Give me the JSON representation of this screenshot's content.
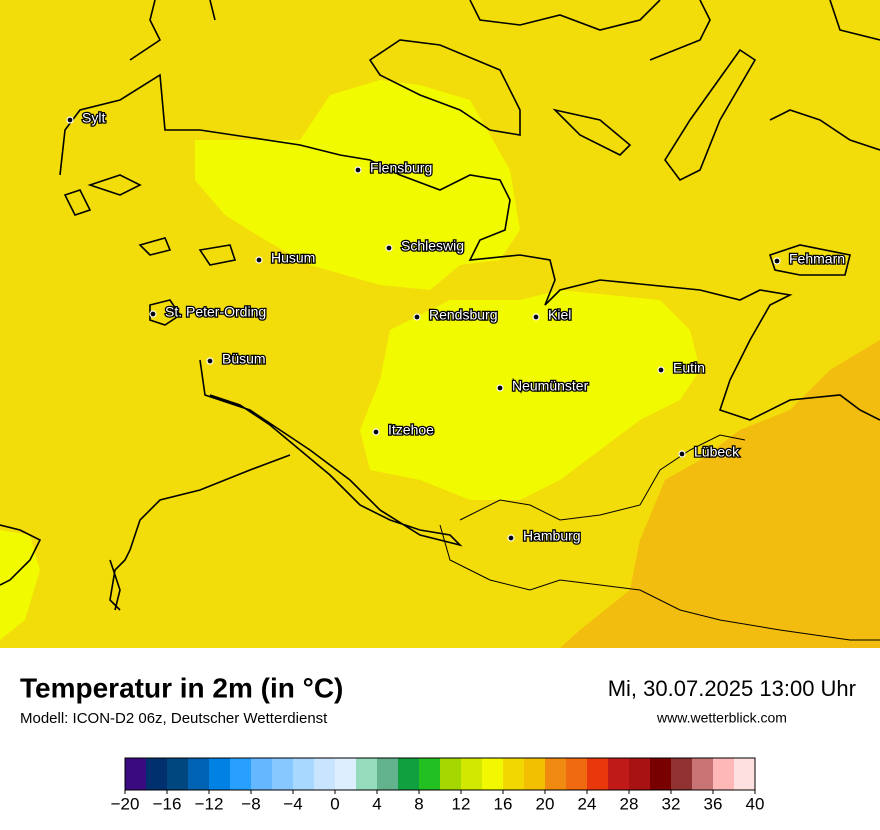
{
  "map": {
    "cities": [
      "Sylt",
      "Flensburg",
      "Schleswig",
      "Husum",
      "St. Peter-Ording",
      "Rendsburg",
      "Kiel",
      "Büsum",
      "Neumünster",
      "Eutin",
      "Itzehoe",
      "Lübeck",
      "Hamburg",
      "Fehmarn"
    ]
  },
  "footer": {
    "title": "Temperatur in 2m (in °C)",
    "subtitle": "Modell: ICON-D2 06z, Deutscher Wetterdienst",
    "date": "Mi, 30.07.2025 13:00 Uhr",
    "website": "www.wetterblick.com"
  },
  "colorbar": {
    "bounds": [
      -20,
      -18,
      -16,
      -14,
      -12,
      -10,
      -8,
      -6,
      -4,
      -2,
      0,
      2,
      4,
      6,
      8,
      10,
      12,
      14,
      16,
      18,
      20,
      22,
      24,
      26,
      28,
      30,
      32,
      34,
      36,
      38,
      40
    ],
    "colors": [
      "#3a0a80",
      "#00306e",
      "#00467f",
      "#0062b2",
      "#0082e4",
      "#28a0ff",
      "#64b8ff",
      "#86c8ff",
      "#a8d8ff",
      "#c8e4ff",
      "#ddeeff",
      "#94dcbc",
      "#62b28e",
      "#10a040",
      "#22c020",
      "#a4d800",
      "#d2e800",
      "#f2f800",
      "#f2d800",
      "#f2c000",
      "#f08a10",
      "#f06a10",
      "#e8380c",
      "#c01a18",
      "#a81212",
      "#780000",
      "#903232",
      "#c87474",
      "#ffb8b8",
      "#ffe0e0"
    ],
    "ticks": [
      {
        "value": -20,
        "label": "−20"
      },
      {
        "value": -16,
        "label": "−16"
      },
      {
        "value": -12,
        "label": "−12"
      },
      {
        "value": -8,
        "label": "−8"
      },
      {
        "value": -4,
        "label": "−4"
      },
      0,
      4,
      8,
      12,
      16,
      20,
      24,
      28,
      32,
      36,
      40
    ]
  }
}
